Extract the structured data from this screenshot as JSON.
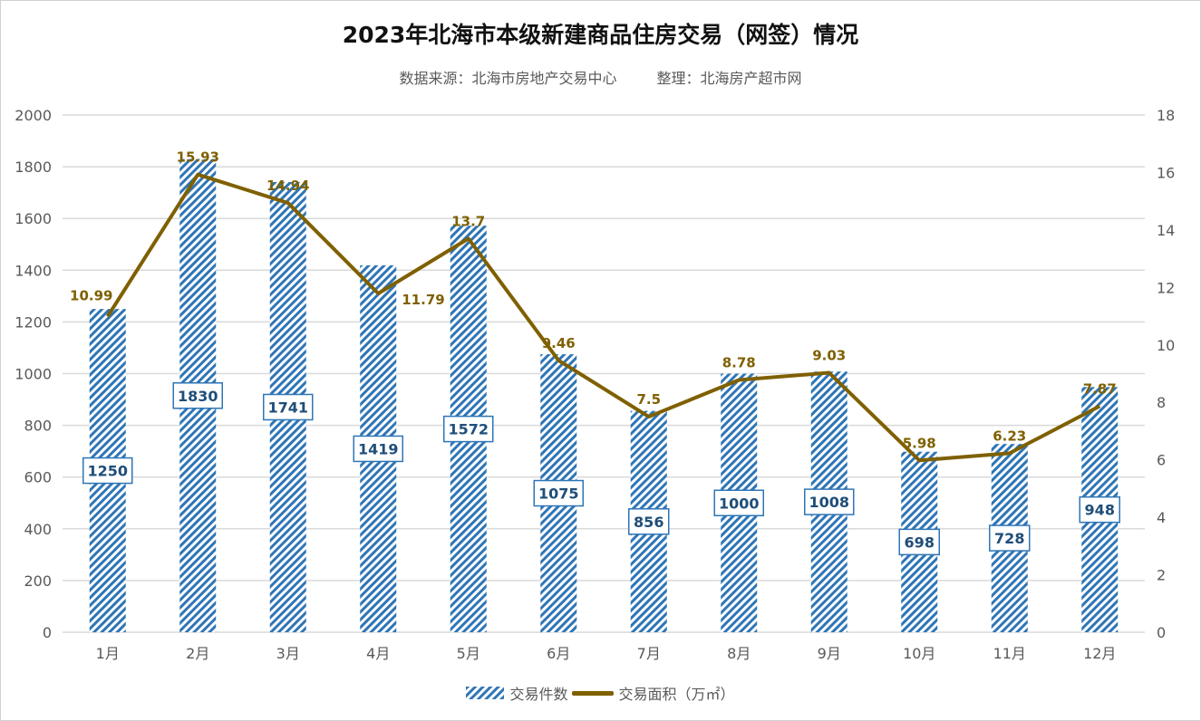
{
  "chart_data": {
    "type": "bar+line",
    "title": "2023年北海市本级新建商品住房交易（网签）情况",
    "subtitle": {
      "source": "数据来源：北海市房地产交易中心",
      "editor": "整理：北海房产超市网"
    },
    "categories": [
      "1月",
      "2月",
      "3月",
      "4月",
      "5月",
      "6月",
      "7月",
      "8月",
      "9月",
      "10月",
      "11月",
      "12月"
    ],
    "series": [
      {
        "name": "交易件数",
        "type": "bar",
        "axis": "left",
        "values": [
          1250,
          1830,
          1741,
          1419,
          1572,
          1075,
          856,
          1000,
          1008,
          698,
          728,
          948
        ],
        "color": "#2e75b6"
      },
      {
        "name": "交易面积（万㎡）",
        "type": "line",
        "axis": "right",
        "values": [
          10.99,
          15.93,
          14.94,
          11.79,
          13.7,
          9.46,
          7.5,
          8.78,
          9.03,
          5.98,
          6.23,
          7.87
        ],
        "color": "#7f6000"
      }
    ],
    "ylim_left": [
      0,
      2000
    ],
    "yticks_left": [
      "0",
      "200",
      "400",
      "600",
      "800",
      "1000",
      "1200",
      "1400",
      "1600",
      "1800",
      "2000"
    ],
    "ylim_right": [
      0,
      18
    ],
    "yticks_right": [
      "0",
      "2",
      "4",
      "6",
      "8",
      "10",
      "12",
      "14",
      "16",
      "18"
    ],
    "grid": true,
    "legend": "bottom"
  }
}
